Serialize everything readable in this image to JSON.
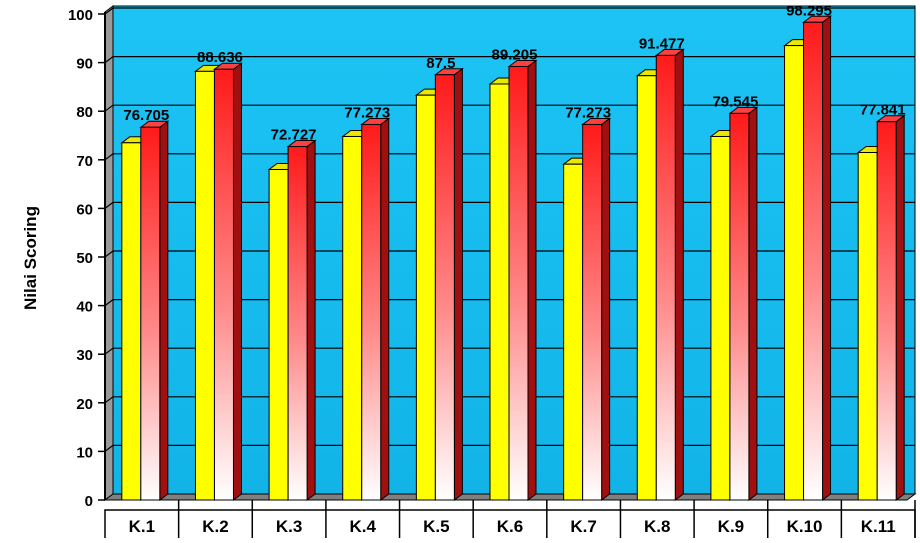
{
  "chart_data": {
    "type": "bar",
    "title": "",
    "xlabel": "",
    "ylabel": "Nilai Scoring",
    "ylim": [
      0,
      100
    ],
    "yticks": [
      0,
      10,
      20,
      30,
      40,
      50,
      60,
      70,
      80,
      90,
      100
    ],
    "grid": true,
    "legend": "none",
    "categories": [
      "K.1",
      "K.2",
      "K.3",
      "K.4",
      "K.5",
      "K.6",
      "K.7",
      "K.8",
      "K.9",
      "K.10",
      "K.11"
    ],
    "series": [
      {
        "values": [
          73.5,
          88.2,
          68.0,
          74.8,
          83.3,
          85.6,
          69.1,
          87.3,
          74.8,
          93.5,
          71.5
        ],
        "color": "#ffff00",
        "show_labels": false
      },
      {
        "values": [
          76.705,
          88.636,
          72.727,
          77.273,
          87.5,
          89.205,
          77.273,
          91.477,
          79.545,
          98.295,
          77.841
        ],
        "labels": [
          "76.705",
          "88.636",
          "72.727",
          "77.273",
          "87.5",
          "89.205",
          "77.273",
          "91.477",
          "79.545",
          "98.295",
          "77.841"
        ],
        "color": "#ff2020",
        "show_labels": true
      }
    ],
    "colors": {
      "plot_background": "#1cc4f4",
      "gridline": "#000000",
      "floor": "#808080"
    }
  }
}
